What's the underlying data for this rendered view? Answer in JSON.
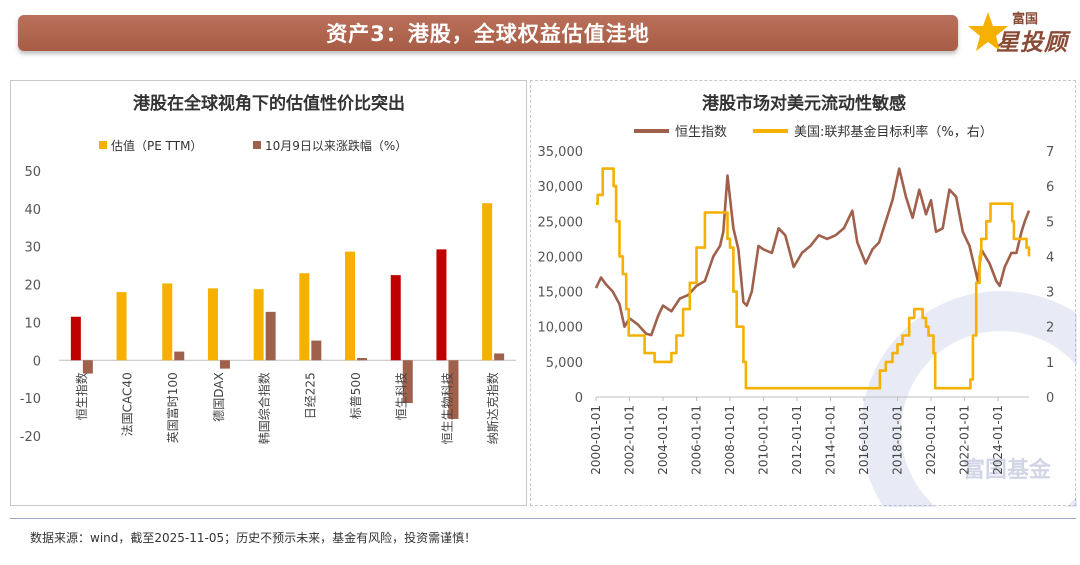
{
  "header": {
    "title": "资产3：港股，全球权益估值洼地"
  },
  "logo": {
    "top_text": "富国",
    "main_text": "星投顾"
  },
  "watermark": {
    "text": "富国基金"
  },
  "footer": {
    "text": "数据来源：wind，截至2025-11-05；历史不预示未来，基金有风险，投资需谨慎！"
  },
  "colors": {
    "orange": "#f5b000",
    "red": "#c00000",
    "brown": "#a0614c",
    "header": "#a85c45"
  },
  "chart_data": [
    {
      "type": "bar",
      "title": "港股在全球视角下的估值性价比突出",
      "categories": [
        "恒生指数",
        "法国CAC40",
        "英国富时100",
        "德国DAX",
        "韩国综合指数",
        "日经225",
        "标普500",
        "恒生科技",
        "恒生生物科技",
        "纳斯达克指数"
      ],
      "series": [
        {
          "name": "估值（PE TTM）",
          "values": [
            11.5,
            18,
            20.3,
            19,
            18.8,
            23,
            28.7,
            22.5,
            29.3,
            41.5
          ],
          "colors": [
            "#c00000",
            "#f5b000",
            "#f5b000",
            "#f5b000",
            "#f5b000",
            "#f5b000",
            "#f5b000",
            "#c00000",
            "#c00000",
            "#f5b000"
          ]
        },
        {
          "name": "10月9日以来涨跌幅（%）",
          "values": [
            -3.5,
            0,
            2.3,
            -2.2,
            12.8,
            5.2,
            0.6,
            -11.3,
            -15.5,
            1.8
          ],
          "color": "#a0614c"
        }
      ],
      "yticks": [
        -20,
        -10,
        0,
        10,
        20,
        30,
        40,
        50
      ],
      "ylim": [
        -20,
        50
      ],
      "legend_position": "top"
    },
    {
      "type": "line",
      "title": "港股市场对美元流动性敏感",
      "x_ticks": [
        "2000-01-01",
        "2002-01-01",
        "2004-01-01",
        "2006-01-01",
        "2008-01-01",
        "2010-01-01",
        "2012-01-01",
        "2014-01-01",
        "2016-01-01",
        "2018-01-01",
        "2020-01-01",
        "2022-01-01",
        "2024-01-01"
      ],
      "x_range": [
        2000.0,
        2025.85
      ],
      "y_left": {
        "ticks": [
          "0",
          "5,000",
          "10,000",
          "15,000",
          "20,000",
          "25,000",
          "30,000",
          "35,000"
        ],
        "range": [
          0,
          35000
        ]
      },
      "y_right": {
        "ticks": [
          "0",
          "1",
          "2",
          "3",
          "4",
          "5",
          "6",
          "7"
        ],
        "range": [
          0,
          7
        ]
      },
      "legend_position": "top",
      "series": [
        {
          "name": "恒生指数",
          "axis": "left",
          "color": "#a0614c",
          "x": [
            2000.0,
            2000.3,
            2000.6,
            2001.0,
            2001.4,
            2001.7,
            2002.0,
            2002.5,
            2003.0,
            2003.3,
            2003.7,
            2004.0,
            2004.5,
            2005.0,
            2005.5,
            2006.0,
            2006.5,
            2007.0,
            2007.4,
            2007.6,
            2007.85,
            2008.2,
            2008.5,
            2008.8,
            2009.0,
            2009.3,
            2009.7,
            2010.0,
            2010.5,
            2010.9,
            2011.3,
            2011.8,
            2012.3,
            2012.8,
            2013.3,
            2013.8,
            2014.3,
            2014.8,
            2015.3,
            2015.6,
            2016.1,
            2016.5,
            2016.9,
            2017.3,
            2017.7,
            2018.1,
            2018.5,
            2018.9,
            2019.3,
            2019.7,
            2020.0,
            2020.3,
            2020.7,
            2021.1,
            2021.5,
            2021.9,
            2022.3,
            2022.8,
            2023.0,
            2023.5,
            2023.9,
            2024.1,
            2024.4,
            2024.8,
            2025.1,
            2025.4,
            2025.6,
            2025.85
          ],
          "values": [
            15500,
            17000,
            16000,
            15000,
            13200,
            10000,
            11200,
            10300,
            9000,
            8800,
            11500,
            13000,
            12200,
            14000,
            14500,
            15800,
            16500,
            20000,
            21500,
            23500,
            31500,
            24000,
            21000,
            13500,
            13000,
            15000,
            21500,
            21000,
            20500,
            24000,
            23000,
            18500,
            20500,
            21500,
            23000,
            22500,
            23000,
            24000,
            26500,
            22000,
            19000,
            21000,
            22000,
            25000,
            28000,
            32500,
            28500,
            25500,
            29500,
            26000,
            28000,
            23500,
            24000,
            29500,
            28500,
            23500,
            21500,
            16500,
            21000,
            19000,
            16500,
            15800,
            18500,
            20500,
            20500,
            23500,
            25000,
            26500
          ]
        },
        {
          "name": "美国:联邦基金目标利率（%，右）",
          "axis": "right",
          "color": "#f5b000",
          "x": [
            2000.0,
            2000.1,
            2000.4,
            2000.95,
            2001.05,
            2001.2,
            2001.4,
            2001.6,
            2001.8,
            2001.95,
            2002.9,
            2003.5,
            2004.5,
            2004.8,
            2005.2,
            2005.6,
            2006.0,
            2006.5,
            2007.7,
            2007.85,
            2008.0,
            2008.2,
            2008.4,
            2008.8,
            2008.95,
            2015.95,
            2016.95,
            2017.3,
            2017.7,
            2018.0,
            2018.3,
            2018.7,
            2019.0,
            2019.5,
            2019.7,
            2019.85,
            2020.15,
            2020.25,
            2022.2,
            2022.35,
            2022.5,
            2022.7,
            2022.9,
            2023.0,
            2023.3,
            2023.55,
            2024.7,
            2024.85,
            2024.95,
            2025.7,
            2025.85
          ],
          "values": [
            5.5,
            5.75,
            6.5,
            6.5,
            6.0,
            5.0,
            4.0,
            3.5,
            2.5,
            1.75,
            1.25,
            1.0,
            1.25,
            1.75,
            2.5,
            3.25,
            4.25,
            5.25,
            5.25,
            4.5,
            4.25,
            3.0,
            2.0,
            1.0,
            0.25,
            0.25,
            0.75,
            1.0,
            1.25,
            1.5,
            1.75,
            2.25,
            2.5,
            2.25,
            2.0,
            1.75,
            1.25,
            0.25,
            0.25,
            0.5,
            1.75,
            3.25,
            4.0,
            4.5,
            5.0,
            5.5,
            5.5,
            5.0,
            4.5,
            4.25,
            4.0
          ]
        }
      ]
    }
  ]
}
